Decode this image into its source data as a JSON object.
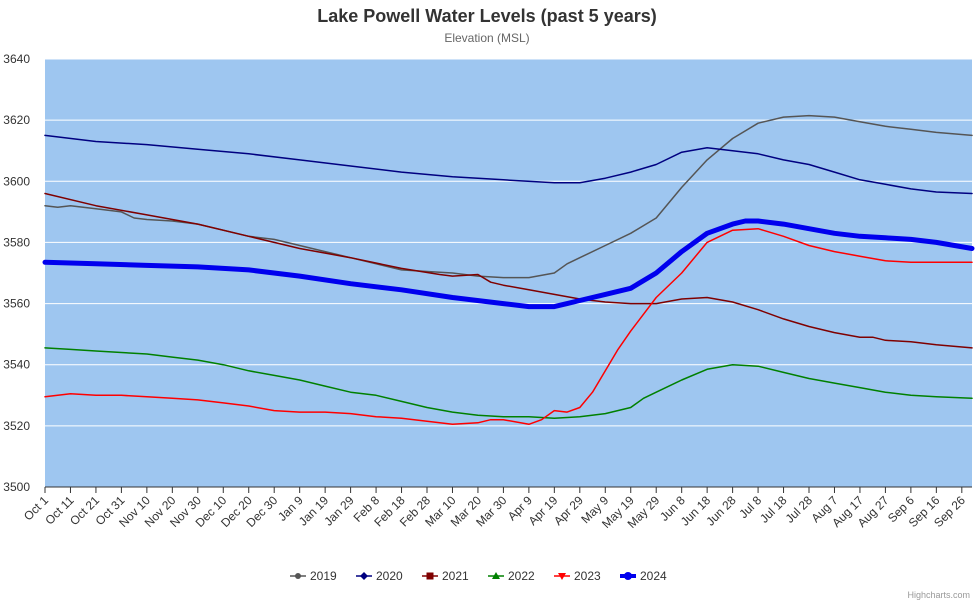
{
  "chart_data": {
    "type": "line",
    "title": "Lake Powell Water Levels (past 5 years)",
    "subtitle": "Elevation (MSL)",
    "xlabel": "",
    "ylabel": "",
    "ylim": [
      3500,
      3640
    ],
    "yticks": [
      3500,
      3520,
      3540,
      3560,
      3580,
      3600,
      3620,
      3640
    ],
    "x_categories": [
      "Oct 1",
      "Oct 11",
      "Oct 21",
      "Oct 31",
      "Nov 10",
      "Nov 20",
      "Nov 30",
      "Dec 10",
      "Dec 20",
      "Dec 30",
      "Jan 9",
      "Jan 19",
      "Jan 29",
      "Feb 8",
      "Feb 18",
      "Feb 28",
      "Mar 10",
      "Mar 20",
      "Mar 30",
      "Apr 9",
      "Apr 19",
      "Apr 29",
      "May 9",
      "May 19",
      "May 29",
      "Jun 8",
      "Jun 18",
      "Jun 28",
      "Jul 8",
      "Jul 18",
      "Jul 28",
      "Aug 7",
      "Aug 17",
      "Aug 27",
      "Sep 6",
      "Sep 16",
      "Sep 26"
    ],
    "x_day_offset": [
      0,
      10,
      20,
      30,
      40,
      50,
      60,
      70,
      80,
      90,
      100,
      110,
      120,
      130,
      140,
      150,
      160,
      170,
      180,
      190,
      200,
      210,
      220,
      230,
      240,
      250,
      260,
      270,
      280,
      290,
      300,
      310,
      320,
      330,
      340,
      350,
      360
    ],
    "grid": true,
    "plot_background": "#9ec6f0",
    "legend_position": "bottom-center",
    "series": [
      {
        "name": "2019",
        "color": "#555555",
        "width": 1.5,
        "x": [
          0,
          5,
          10,
          20,
          30,
          35,
          40,
          50,
          60,
          70,
          80,
          90,
          100,
          110,
          120,
          130,
          140,
          150,
          160,
          170,
          180,
          190,
          200,
          205,
          210,
          220,
          230,
          240,
          250,
          260,
          270,
          280,
          290,
          300,
          310,
          320,
          330,
          340,
          350,
          364
        ],
        "y": [
          3592,
          3591.5,
          3592,
          3591,
          3590,
          3588,
          3587.5,
          3587,
          3586,
          3584,
          3582,
          3581,
          3579,
          3577,
          3575,
          3573,
          3571,
          3570.5,
          3570,
          3569,
          3568.5,
          3568.5,
          3570,
          3573,
          3575,
          3579,
          3583,
          3588,
          3598,
          3607,
          3614,
          3619,
          3621,
          3621.5,
          3621,
          3619.5,
          3618,
          3617,
          3616,
          3615
        ]
      },
      {
        "name": "2020",
        "color": "#000080",
        "width": 1.5,
        "x": [
          0,
          20,
          40,
          60,
          80,
          100,
          120,
          140,
          160,
          180,
          200,
          210,
          220,
          230,
          240,
          250,
          260,
          270,
          280,
          290,
          300,
          310,
          320,
          330,
          340,
          350,
          364
        ],
        "y": [
          3615,
          3613,
          3612,
          3610.5,
          3609,
          3607,
          3605,
          3603,
          3601.5,
          3600.5,
          3599.5,
          3599.5,
          3601,
          3603,
          3605.5,
          3609.5,
          3611,
          3610,
          3609,
          3607,
          3605.5,
          3603,
          3600.5,
          3599,
          3597.5,
          3596.5,
          3596
        ]
      },
      {
        "name": "2021",
        "color": "#7f0000",
        "width": 1.5,
        "x": [
          0,
          20,
          40,
          60,
          80,
          100,
          120,
          140,
          155,
          160,
          170,
          175,
          180,
          190,
          200,
          210,
          220,
          230,
          240,
          250,
          260,
          270,
          280,
          290,
          300,
          310,
          320,
          325,
          330,
          340,
          350,
          364
        ],
        "y": [
          3596,
          3592,
          3589,
          3586,
          3582,
          3578,
          3575,
          3571.5,
          3569.5,
          3569,
          3569.5,
          3567,
          3566,
          3564.5,
          3563,
          3561.5,
          3560.5,
          3560,
          3560,
          3561.5,
          3562,
          3560.5,
          3558,
          3555,
          3552.5,
          3550.5,
          3549,
          3549,
          3548,
          3547.5,
          3546.5,
          3545.5
        ]
      },
      {
        "name": "2022",
        "color": "#008000",
        "width": 1.5,
        "x": [
          0,
          10,
          20,
          30,
          40,
          50,
          60,
          70,
          80,
          90,
          100,
          110,
          120,
          130,
          140,
          150,
          160,
          170,
          180,
          190,
          200,
          210,
          220,
          230,
          235,
          240,
          250,
          260,
          270,
          280,
          290,
          300,
          310,
          320,
          330,
          340,
          350,
          364
        ],
        "y": [
          3545.5,
          3545,
          3544.5,
          3544,
          3543.5,
          3542.5,
          3541.5,
          3540,
          3538,
          3536.5,
          3535,
          3533,
          3531,
          3530,
          3528,
          3526,
          3524.5,
          3523.5,
          3523,
          3523,
          3522.5,
          3523,
          3524,
          3526,
          3529,
          3531,
          3535,
          3538.5,
          3540,
          3539.5,
          3537.5,
          3535.5,
          3534,
          3532.5,
          3531,
          3530,
          3529.5,
          3529
        ]
      },
      {
        "name": "2023",
        "color": "#ff0000",
        "width": 1.5,
        "x": [
          0,
          10,
          20,
          30,
          40,
          50,
          60,
          70,
          80,
          90,
          100,
          110,
          120,
          130,
          140,
          150,
          160,
          170,
          175,
          180,
          190,
          195,
          200,
          205,
          210,
          215,
          220,
          225,
          230,
          240,
          250,
          260,
          270,
          280,
          290,
          300,
          310,
          320,
          330,
          340,
          350,
          364
        ],
        "y": [
          3529.5,
          3530.5,
          3530,
          3530,
          3529.5,
          3529,
          3528.5,
          3527.5,
          3526.5,
          3525,
          3524.5,
          3524.5,
          3524,
          3523,
          3522.5,
          3521.5,
          3520.5,
          3521,
          3522,
          3522,
          3520.5,
          3522,
          3525,
          3524.5,
          3526,
          3531,
          3538,
          3545,
          3551,
          3562,
          3570,
          3580,
          3584,
          3584.5,
          3582,
          3579,
          3577,
          3575.5,
          3574,
          3573.5,
          3573.5,
          3573.5
        ]
      },
      {
        "name": "2024",
        "color": "#0000ee",
        "width": 5,
        "x": [
          0,
          20,
          40,
          60,
          80,
          100,
          120,
          140,
          160,
          180,
          190,
          195,
          200,
          205,
          210,
          220,
          230,
          240,
          250,
          260,
          270,
          275,
          280,
          290,
          300,
          310,
          320,
          330,
          340,
          350,
          364
        ],
        "y": [
          3573.5,
          3573,
          3572.5,
          3572,
          3571,
          3569,
          3566.5,
          3564.5,
          3562,
          3560,
          3559,
          3559,
          3559,
          3560,
          3561,
          3563,
          3565,
          3570,
          3577,
          3583,
          3586,
          3587,
          3587,
          3586,
          3584.5,
          3583,
          3582,
          3581.5,
          3581,
          3580,
          3578
        ]
      }
    ]
  },
  "credit": "Highcharts.com"
}
